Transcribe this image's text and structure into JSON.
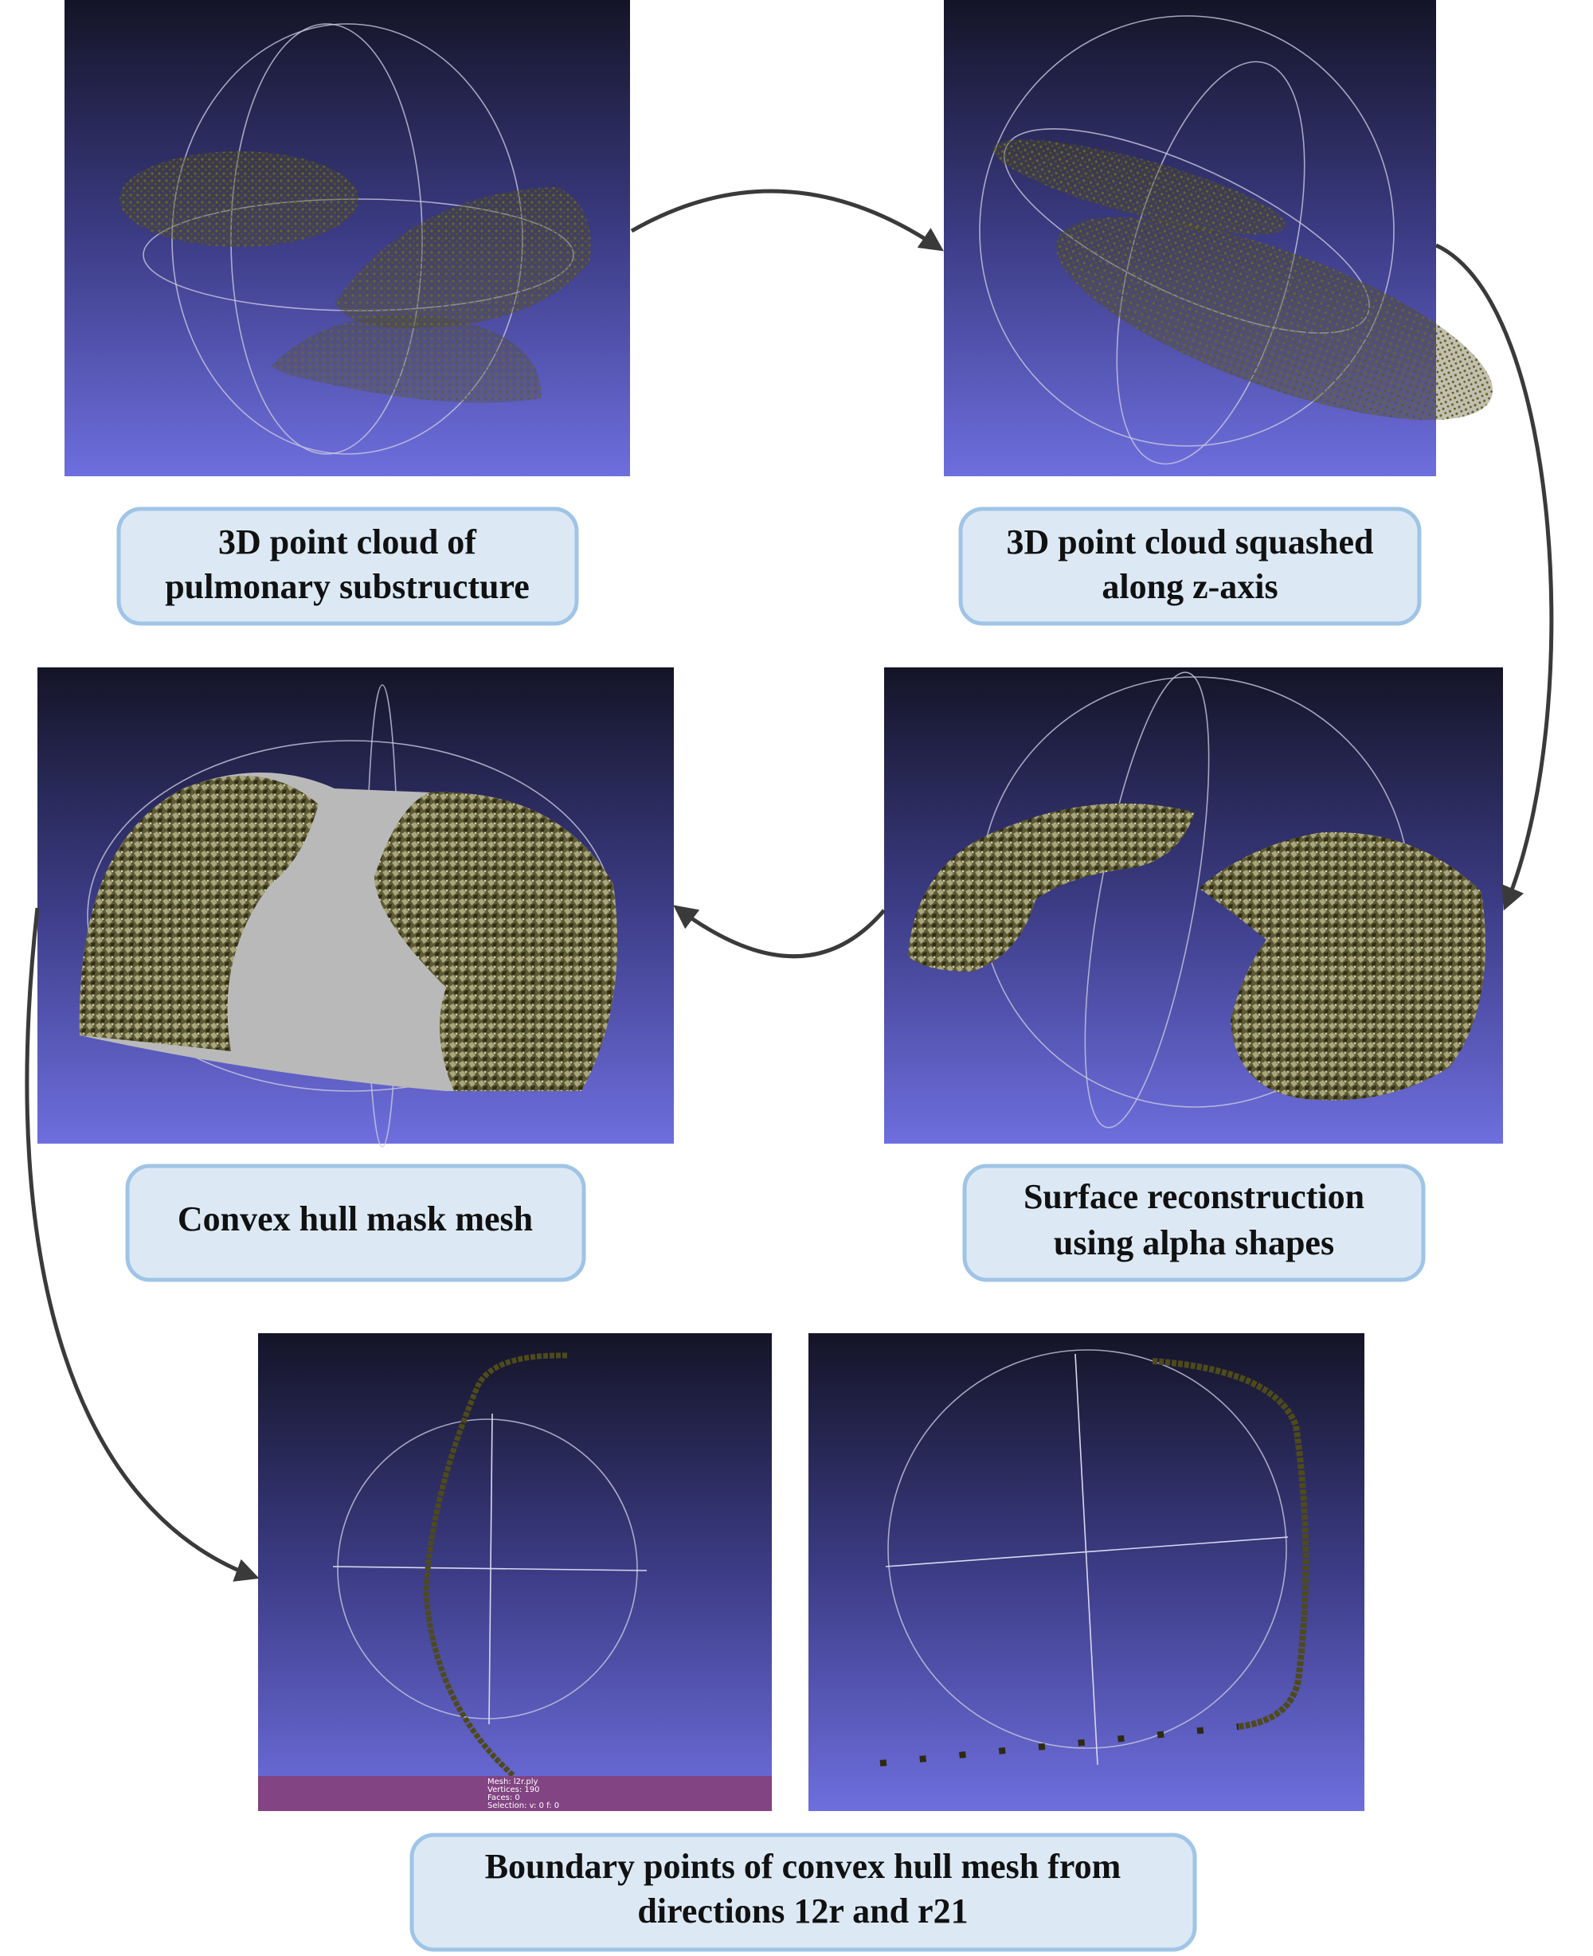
{
  "labels": [
    {
      "lines": [
        "3D point cloud of",
        "pulmonary substructure"
      ]
    },
    {
      "lines": [
        "3D point cloud squashed",
        "along z-axis"
      ]
    },
    {
      "lines": [
        "Convex hull mask mesh"
      ]
    },
    {
      "lines": [
        "Surface reconstruction",
        "using alpha shapes"
      ]
    },
    {
      "lines": [
        "Boundary points of convex hull mesh from",
        "directions 12r and r21"
      ]
    }
  ],
  "viewer_status": {
    "lines": [
      "Mesh: l2r.ply",
      "Vertices: 190",
      "Faces: 0",
      "Selection: v: 0 f: 0"
    ]
  }
}
